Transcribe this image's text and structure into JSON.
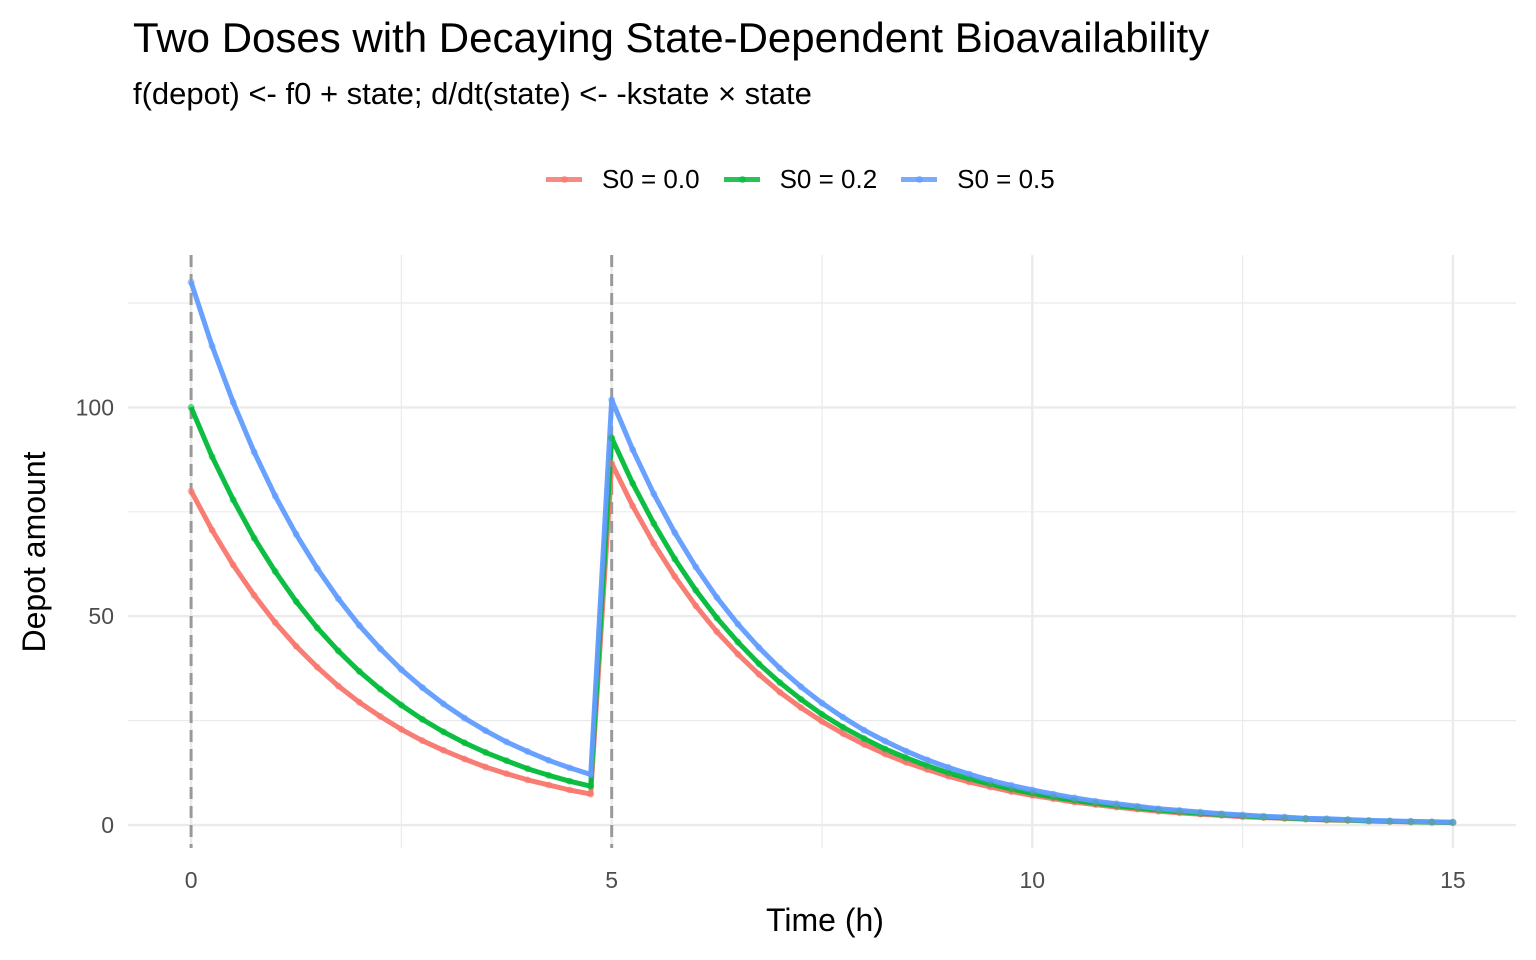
{
  "chart_data": {
    "type": "line",
    "title": "Two Doses with Decaying State-Dependent Bioavailability",
    "subtitle": "f(depot) <- f0 + state;  d/dt(state) <- -kstate × state",
    "xlabel": "Time (h)",
    "ylabel": "Depot amount",
    "xlim": [
      -0.75,
      15.75
    ],
    "ylim": [
      -5.5,
      136.5
    ],
    "x_ticks": [
      0,
      5,
      10,
      15
    ],
    "x_tick_labels": [
      "0",
      "5",
      "10",
      "15"
    ],
    "x_minor": [
      2.5,
      7.5,
      12.5
    ],
    "y_ticks": [
      0,
      50,
      100
    ],
    "y_tick_labels": [
      "0",
      "50",
      "100"
    ],
    "y_minor": [
      25,
      75,
      125
    ],
    "grid": true,
    "dose_times": [
      0,
      5
    ],
    "legend_position": "top",
    "x": [
      0,
      0.25,
      0.5,
      0.75,
      1,
      1.25,
      1.5,
      1.75,
      2,
      2.25,
      2.5,
      2.75,
      3,
      3.25,
      3.5,
      3.75,
      4,
      4.25,
      4.5,
      4.75,
      5,
      5.25,
      5.5,
      5.75,
      6,
      6.25,
      6.5,
      6.75,
      7,
      7.25,
      7.5,
      7.75,
      8,
      8.25,
      8.5,
      8.75,
      9,
      9.25,
      9.5,
      9.75,
      10,
      10.25,
      10.5,
      10.75,
      11,
      11.25,
      11.5,
      11.75,
      12,
      12.25,
      12.5,
      12.75,
      13,
      13.25,
      13.5,
      13.75,
      14,
      14.25,
      14.5,
      14.75,
      15
    ],
    "series": [
      {
        "name": "S0 = 0.0",
        "color": "#F8766D",
        "values": [
          80,
          70.6,
          62.3,
          55.0,
          48.5,
          42.8,
          37.8,
          33.3,
          29.4,
          26.0,
          22.9,
          20.2,
          17.9,
          15.8,
          13.9,
          12.3,
          10.8,
          9.6,
          8.4,
          7.4,
          86.6,
          76.4,
          67.4,
          59.5,
          52.5,
          46.3,
          40.9,
          36.1,
          31.8,
          28.1,
          24.8,
          21.9,
          19.3,
          17.0,
          15.0,
          13.3,
          11.7,
          10.3,
          9.1,
          8.0,
          7.1,
          6.3,
          5.5,
          4.9,
          4.3,
          3.8,
          3.3,
          2.9,
          2.6,
          2.3,
          2.0,
          1.8,
          1.6,
          1.4,
          1.2,
          1.1,
          0.96,
          0.85,
          0.75,
          0.66,
          0.58
        ]
      },
      {
        "name": "S0 = 0.2",
        "color": "#00BA38",
        "values": [
          100,
          88.2,
          77.9,
          68.7,
          60.7,
          53.5,
          47.2,
          41.7,
          36.8,
          32.5,
          28.7,
          25.3,
          22.3,
          19.7,
          17.4,
          15.4,
          13.5,
          11.9,
          10.5,
          9.3,
          92.7,
          81.8,
          72.2,
          63.7,
          56.2,
          49.6,
          43.8,
          38.6,
          34.1,
          30.1,
          26.5,
          23.4,
          20.7,
          18.2,
          16.1,
          14.2,
          12.5,
          11.1,
          9.8,
          8.6,
          7.6,
          6.7,
          5.9,
          5.2,
          4.6,
          4.1,
          3.6,
          3.2,
          2.8,
          2.5,
          2.2,
          1.9,
          1.7,
          1.5,
          1.3,
          1.2,
          1.0,
          0.91,
          0.8,
          0.71,
          0.62
        ]
      },
      {
        "name": "S0 = 0.5",
        "color": "#619CFF",
        "values": [
          130,
          114.7,
          101.2,
          89.3,
          78.8,
          69.6,
          61.4,
          54.2,
          47.8,
          42.2,
          37.2,
          32.9,
          29.0,
          25.6,
          22.6,
          19.9,
          17.6,
          15.5,
          13.7,
          12.1,
          101.8,
          89.9,
          79.3,
          70.0,
          61.8,
          54.5,
          48.1,
          42.5,
          37.5,
          33.1,
          29.2,
          25.8,
          22.7,
          20.1,
          17.7,
          15.6,
          13.8,
          12.2,
          10.7,
          9.5,
          8.4,
          7.4,
          6.5,
          5.7,
          5.1,
          4.5,
          3.9,
          3.5,
          3.1,
          2.7,
          2.4,
          2.1,
          1.9,
          1.6,
          1.5,
          1.3,
          1.1,
          1.0,
          0.88,
          0.77,
          0.68
        ]
      }
    ]
  }
}
